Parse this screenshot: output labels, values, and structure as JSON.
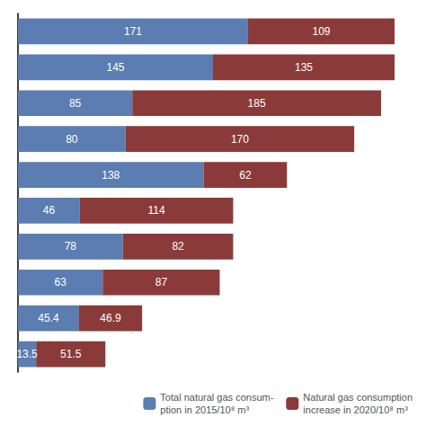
{
  "chart_data": {
    "type": "bar",
    "orientation": "horizontal",
    "stacked": true,
    "categories": [
      null,
      null,
      null,
      null,
      null,
      null,
      null,
      null,
      null,
      null
    ],
    "series": [
      {
        "name": "Total natural gas consum-\nption in 2015/10⁸ m³",
        "color": "#5b7db1",
        "values": [
          171,
          145,
          85,
          80,
          138,
          46,
          78,
          63,
          45.4,
          13.5
        ]
      },
      {
        "name": "Natural gas consumption\nincrease in 2020/10⁸ m³",
        "color": "#8b3a3a",
        "values": [
          109,
          135,
          185,
          170,
          62,
          114,
          82,
          87,
          46.9,
          51.5
        ]
      }
    ],
    "xlim": [
      0,
      290
    ],
    "tick_labels": false,
    "data_labels": true,
    "legend": "lower right",
    "grid": false
  }
}
